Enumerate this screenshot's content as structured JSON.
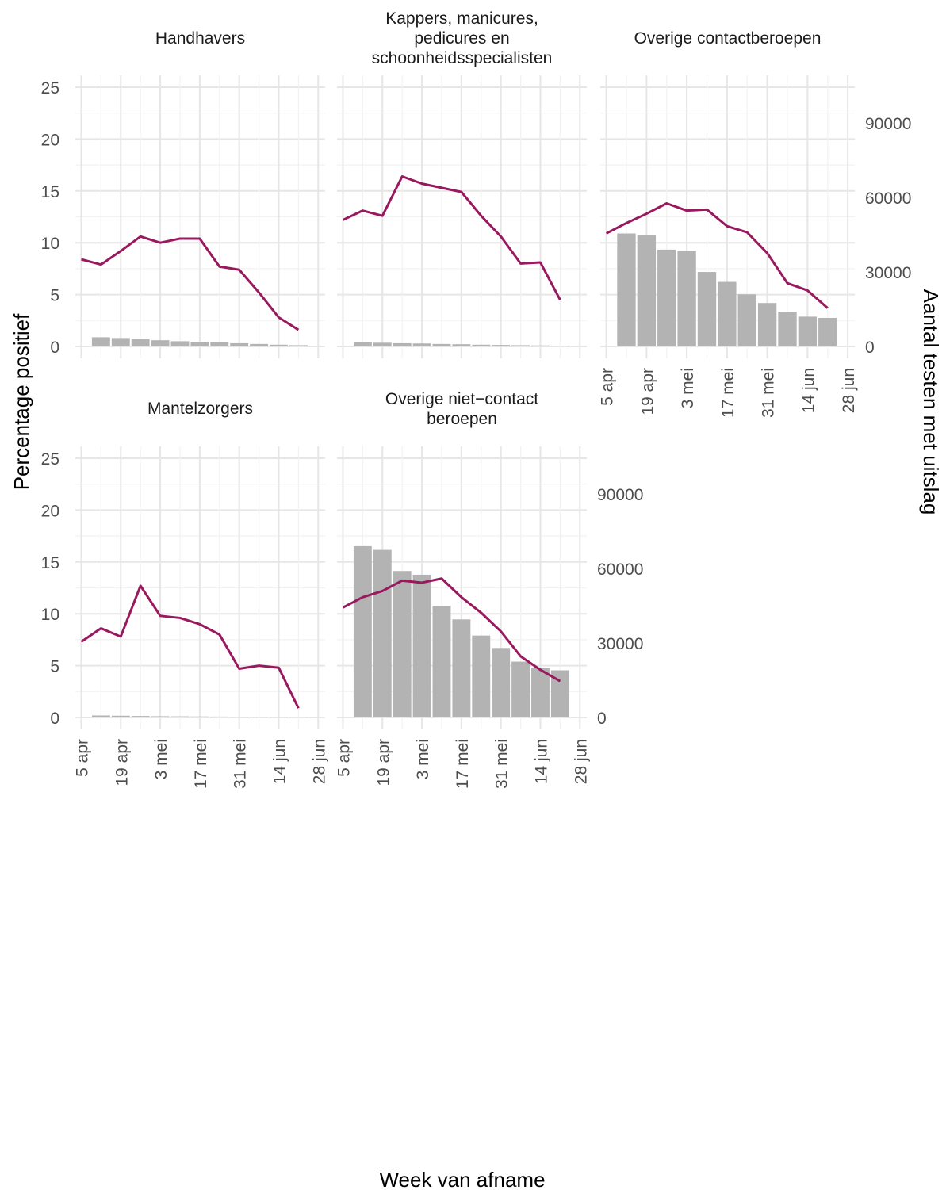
{
  "chart_data": {
    "type": "bar",
    "combo": "bars = Aantal testen met uitslag (right axis); line = Percentage positief (left axis)",
    "xlabel": "Week van afname",
    "ylabel": "Percentage positief",
    "y2label": "Aantal testen met uitslag",
    "ylim": [
      0,
      25
    ],
    "y2lim": [
      0,
      90000
    ],
    "yticks": [
      "0",
      "5",
      "10",
      "15",
      "20",
      "25"
    ],
    "y2ticks": [
      "0",
      "30000",
      "60000",
      "90000"
    ],
    "x_tick_labels": [
      "5 apr",
      "19 apr",
      "3 mei",
      "17 mei",
      "31 mei",
      "14 jun",
      "28 jun"
    ],
    "weeks": [
      "5 apr",
      "12 apr",
      "19 apr",
      "26 apr",
      "3 mei",
      "10 mei",
      "17 mei",
      "24 mei",
      "31 mei",
      "7 jun",
      "14 jun",
      "21 jun"
    ],
    "colors": {
      "line": "#99195e",
      "bar": "#b3b3b3",
      "grid": "#e6e6e6"
    },
    "panels": [
      {
        "title": "Handhavers",
        "percentage_positief": [
          8.4,
          7.9,
          9.2,
          10.6,
          10.0,
          10.4,
          10.4,
          7.7,
          7.4,
          5.2,
          2.8,
          1.6
        ],
        "aantal_testen": [
          null,
          3700,
          3400,
          3000,
          2500,
          2100,
          1900,
          1600,
          1300,
          1000,
          700,
          500
        ]
      },
      {
        "title": "Kappers, manicures, pedicures en schoonheidsspecialisten",
        "percentage_positief": [
          12.2,
          13.1,
          12.6,
          16.4,
          15.7,
          15.3,
          14.9,
          12.6,
          10.6,
          8.0,
          8.1,
          4.5
        ],
        "aantal_testen": [
          null,
          1600,
          1500,
          1300,
          1200,
          1000,
          900,
          700,
          600,
          500,
          400,
          300
        ]
      },
      {
        "title": "Overige contactberoepen",
        "percentage_positief": [
          10.9,
          11.9,
          12.8,
          13.8,
          13.1,
          13.2,
          11.6,
          11.0,
          9.0,
          6.1,
          5.4,
          3.7
        ],
        "aantal_testen": [
          null,
          45500,
          45000,
          39000,
          38500,
          30000,
          26000,
          21000,
          17500,
          14000,
          12000,
          11500
        ]
      },
      {
        "title": "Mantelzorgers",
        "percentage_positief": [
          7.3,
          8.6,
          7.8,
          12.7,
          9.8,
          9.6,
          9.0,
          8.0,
          4.7,
          5.0,
          4.8,
          0.9
        ],
        "aantal_testen": [
          null,
          800,
          700,
          600,
          500,
          450,
          400,
          350,
          300,
          250,
          200,
          150
        ]
      },
      {
        "title": "Overige niet−contact beroepen",
        "percentage_positief": [
          10.6,
          11.6,
          12.2,
          13.2,
          13.0,
          13.4,
          11.6,
          10.1,
          8.3,
          5.9,
          4.6,
          3.5
        ],
        "aantal_testen": [
          null,
          69000,
          67500,
          59000,
          57500,
          45000,
          39500,
          33000,
          28000,
          22500,
          20000,
          19000
        ]
      }
    ]
  }
}
